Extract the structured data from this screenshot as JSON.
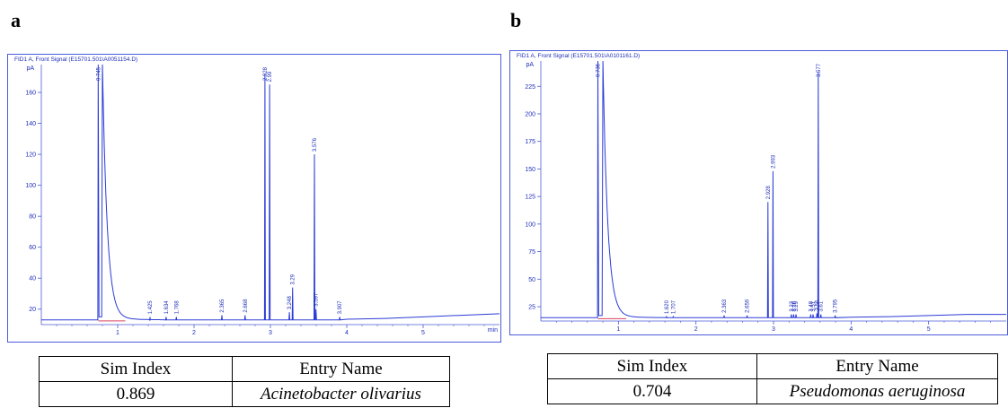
{
  "panels": [
    {
      "letter": "a",
      "table": {
        "headers": [
          "Sim Index",
          "Entry Name"
        ],
        "rows": [
          [
            "0.869",
            "Acinetobacter olivarius"
          ]
        ]
      }
    },
    {
      "letter": "b",
      "table": {
        "headers": [
          "Sim Index",
          "Entry Name"
        ],
        "rows": [
          [
            "0.704",
            "Pseudomonas aeruginosa"
          ]
        ]
      }
    }
  ],
  "colors": {
    "trace": "#2b3bd6",
    "frame": "#4b5bd8",
    "baseline": "#d94060",
    "text": "#1f2fb8"
  },
  "chart_data": [
    {
      "type": "line",
      "title": "FID1 A, Front Signal (E15701.501\\A0051154.D)",
      "ylabel": "pA",
      "xlabel": "min",
      "xlim": [
        0,
        6.0
      ],
      "ylim": [
        10,
        178
      ],
      "yticks": [
        20,
        40,
        60,
        80,
        100,
        120,
        140,
        160
      ],
      "xticks": [
        1,
        2,
        3,
        4,
        5
      ],
      "baseline": 13,
      "solvent_peak": {
        "rt": 0.8,
        "rise_rt": 0.745
      },
      "peaks": [
        {
          "rt": 0.745,
          "label": "0.745",
          "height": 178
        },
        {
          "rt": 1.425,
          "label": "1.425",
          "height": 15
        },
        {
          "rt": 1.634,
          "label": "1.634",
          "height": 15
        },
        {
          "rt": 1.768,
          "label": "1.768",
          "height": 15
        },
        {
          "rt": 2.365,
          "label": "2.365",
          "height": 16
        },
        {
          "rt": 2.668,
          "label": "2.668",
          "height": 16
        },
        {
          "rt": 2.928,
          "label": "2.928",
          "height": 172
        },
        {
          "rt": 2.99,
          "label": "2.99",
          "height": 165
        },
        {
          "rt": 3.248,
          "label": "3.248",
          "height": 18
        },
        {
          "rt": 3.291,
          "label": "3.29",
          "height": 34
        },
        {
          "rt": 3.576,
          "label": "3.576",
          "height": 120
        },
        {
          "rt": 3.597,
          "label": "3.597",
          "height": 20
        },
        {
          "rt": 3.907,
          "label": "3.907",
          "height": 15
        }
      ],
      "tail": [
        [
          4.0,
          13.5
        ],
        [
          4.5,
          14
        ],
        [
          5.0,
          15
        ],
        [
          5.5,
          16
        ],
        [
          6.0,
          17
        ]
      ]
    },
    {
      "type": "line",
      "title": "FID1 A, Front Signal (E15701.501\\A0101161.D)",
      "ylabel": "pA",
      "xlabel": "",
      "xlim": [
        0,
        6.0
      ],
      "ylim": [
        12,
        248
      ],
      "yticks": [
        25,
        50,
        75,
        100,
        125,
        150,
        175,
        200,
        225
      ],
      "xticks": [
        1,
        2,
        3,
        4,
        5
      ],
      "baseline": 15,
      "solvent_peak": {
        "rt": 0.8,
        "rise_rt": 0.736
      },
      "peaks": [
        {
          "rt": 0.736,
          "label": "0.736",
          "height": 248
        },
        {
          "rt": 1.62,
          "label": "1.620",
          "height": 16
        },
        {
          "rt": 1.707,
          "label": "1.707",
          "height": 16
        },
        {
          "rt": 2.363,
          "label": "2.363",
          "height": 17
        },
        {
          "rt": 2.659,
          "label": "2.659",
          "height": 17
        },
        {
          "rt": 2.928,
          "label": "2.928",
          "height": 120
        },
        {
          "rt": 2.993,
          "label": "2.993",
          "height": 148
        },
        {
          "rt": 3.23,
          "label": "3.23",
          "height": 18
        },
        {
          "rt": 3.26,
          "label": "3.26",
          "height": 18
        },
        {
          "rt": 3.29,
          "label": "3.29",
          "height": 18
        },
        {
          "rt": 3.48,
          "label": "3.48",
          "height": 18
        },
        {
          "rt": 3.51,
          "label": "3.51",
          "height": 18
        },
        {
          "rt": 3.56,
          "label": "3.56",
          "height": 19
        },
        {
          "rt": 3.577,
          "label": "3.577",
          "height": 238
        },
        {
          "rt": 3.61,
          "label": "3.61",
          "height": 18
        },
        {
          "rt": 3.795,
          "label": "3.795",
          "height": 17
        }
      ],
      "tail": [
        [
          4.0,
          15.5
        ],
        [
          4.5,
          16
        ],
        [
          5.0,
          17
        ],
        [
          5.5,
          18
        ],
        [
          6.0,
          18
        ]
      ]
    }
  ]
}
